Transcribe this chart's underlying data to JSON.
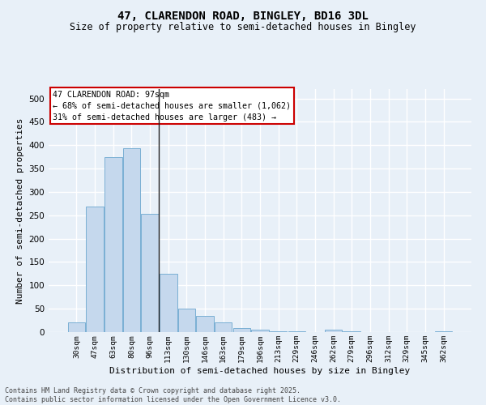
{
  "title_line1": "47, CLARENDON ROAD, BINGLEY, BD16 3DL",
  "title_line2": "Size of property relative to semi-detached houses in Bingley",
  "xlabel": "Distribution of semi-detached houses by size in Bingley",
  "ylabel": "Number of semi-detached properties",
  "bar_color": "#c5d8ed",
  "bar_edge_color": "#7aafd4",
  "annotation_line1": "47 CLARENDON ROAD: 97sqm",
  "annotation_line2": "← 68% of semi-detached houses are smaller (1,062)",
  "annotation_line3": "31% of semi-detached houses are larger (483) →",
  "annotation_box_color": "#ffffff",
  "annotation_box_edge": "#cc0000",
  "footer_line1": "Contains HM Land Registry data © Crown copyright and database right 2025.",
  "footer_line2": "Contains public sector information licensed under the Open Government Licence v3.0.",
  "categories": [
    "30sqm",
    "47sqm",
    "63sqm",
    "80sqm",
    "96sqm",
    "113sqm",
    "130sqm",
    "146sqm",
    "163sqm",
    "179sqm",
    "196sqm",
    "213sqm",
    "229sqm",
    "246sqm",
    "262sqm",
    "279sqm",
    "296sqm",
    "312sqm",
    "329sqm",
    "345sqm",
    "362sqm"
  ],
  "values": [
    20,
    268,
    375,
    393,
    253,
    125,
    50,
    35,
    20,
    8,
    5,
    2,
    1,
    0,
    5,
    1,
    0,
    0,
    0,
    0,
    1
  ],
  "property_bin_idx": 4,
  "ylim": [
    0,
    520
  ],
  "yticks": [
    0,
    50,
    100,
    150,
    200,
    250,
    300,
    350,
    400,
    450,
    500
  ],
  "background_color": "#e8f0f8",
  "grid_color": "#ffffff"
}
